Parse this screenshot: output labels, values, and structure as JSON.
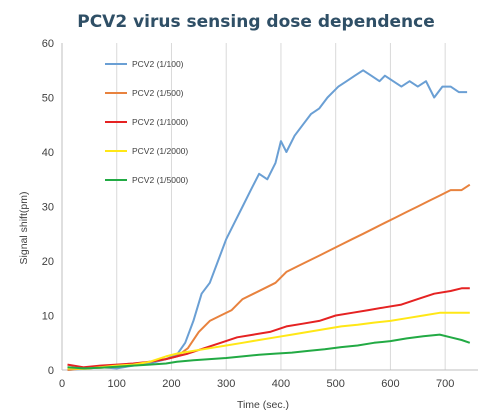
{
  "chart_data": {
    "type": "line",
    "title": "PCV2 virus sensing dose dependence",
    "xlabel": "Time (sec.)",
    "ylabel": "Signal shift(pm)",
    "xlim": [
      0,
      760
    ],
    "ylim": [
      0,
      60
    ],
    "x_ticks": [
      "0",
      "100",
      "200",
      "300",
      "400",
      "500",
      "600",
      "700"
    ],
    "y_ticks": [
      "0",
      "10",
      "20",
      "30",
      "40",
      "50",
      "60"
    ],
    "grid": "vertical",
    "legend_position": "top-left",
    "series": [
      {
        "name": "PCV2 (1/100)",
        "color": "#6a9fd4",
        "points": [
          [
            10,
            0
          ],
          [
            40,
            0.2
          ],
          [
            70,
            0.5
          ],
          [
            100,
            0.3
          ],
          [
            130,
            0.8
          ],
          [
            160,
            1.2
          ],
          [
            190,
            2
          ],
          [
            210,
            2.8
          ],
          [
            225,
            5
          ],
          [
            240,
            9
          ],
          [
            255,
            14
          ],
          [
            270,
            16
          ],
          [
            285,
            20
          ],
          [
            300,
            24
          ],
          [
            315,
            27
          ],
          [
            330,
            30
          ],
          [
            345,
            33
          ],
          [
            360,
            36
          ],
          [
            375,
            35
          ],
          [
            390,
            38
          ],
          [
            400,
            42
          ],
          [
            410,
            40
          ],
          [
            425,
            43
          ],
          [
            440,
            45
          ],
          [
            455,
            47
          ],
          [
            470,
            48
          ],
          [
            485,
            50
          ],
          [
            495,
            51
          ],
          [
            505,
            52
          ],
          [
            520,
            53
          ],
          [
            535,
            54
          ],
          [
            550,
            55
          ],
          [
            565,
            54
          ],
          [
            580,
            53
          ],
          [
            590,
            54
          ],
          [
            605,
            53
          ],
          [
            620,
            52
          ],
          [
            635,
            53
          ],
          [
            650,
            52
          ],
          [
            665,
            53
          ],
          [
            680,
            50
          ],
          [
            695,
            52
          ],
          [
            710,
            52
          ],
          [
            725,
            51
          ],
          [
            740,
            51
          ]
        ]
      },
      {
        "name": "PCV2 (1/500)",
        "color": "#e8823e",
        "points": [
          [
            10,
            0
          ],
          [
            40,
            0.3
          ],
          [
            70,
            0.4
          ],
          [
            100,
            0.6
          ],
          [
            130,
            1
          ],
          [
            160,
            1.5
          ],
          [
            190,
            2
          ],
          [
            210,
            2.5
          ],
          [
            230,
            4
          ],
          [
            250,
            7
          ],
          [
            270,
            9
          ],
          [
            290,
            10
          ],
          [
            310,
            11
          ],
          [
            330,
            13
          ],
          [
            350,
            14
          ],
          [
            370,
            15
          ],
          [
            390,
            16
          ],
          [
            410,
            18
          ],
          [
            430,
            19
          ],
          [
            450,
            20
          ],
          [
            470,
            21
          ],
          [
            490,
            22
          ],
          [
            510,
            23
          ],
          [
            530,
            24
          ],
          [
            550,
            25
          ],
          [
            570,
            26
          ],
          [
            590,
            27
          ],
          [
            610,
            28
          ],
          [
            630,
            29
          ],
          [
            650,
            30
          ],
          [
            670,
            31
          ],
          [
            690,
            32
          ],
          [
            710,
            33
          ],
          [
            730,
            33
          ],
          [
            745,
            34
          ]
        ]
      },
      {
        "name": "PCV2 (1/1000)",
        "color": "#e52222",
        "points": [
          [
            10,
            1
          ],
          [
            40,
            0.5
          ],
          [
            70,
            0.8
          ],
          [
            100,
            1
          ],
          [
            130,
            1.2
          ],
          [
            160,
            1.5
          ],
          [
            190,
            2
          ],
          [
            210,
            2.5
          ],
          [
            230,
            3
          ],
          [
            260,
            4
          ],
          [
            290,
            5
          ],
          [
            320,
            6
          ],
          [
            350,
            6.5
          ],
          [
            380,
            7
          ],
          [
            410,
            8
          ],
          [
            440,
            8.5
          ],
          [
            470,
            9
          ],
          [
            500,
            10
          ],
          [
            530,
            10.5
          ],
          [
            560,
            11
          ],
          [
            590,
            11.5
          ],
          [
            620,
            12
          ],
          [
            650,
            13
          ],
          [
            680,
            14
          ],
          [
            710,
            14.5
          ],
          [
            730,
            15
          ],
          [
            745,
            15
          ]
        ]
      },
      {
        "name": "PCV2 (1/2000)",
        "color": "#ffe716",
        "points": [
          [
            10,
            0.3
          ],
          [
            40,
            0.2
          ],
          [
            70,
            0.5
          ],
          [
            100,
            0.8
          ],
          [
            130,
            1
          ],
          [
            160,
            1.5
          ],
          [
            190,
            2.5
          ],
          [
            210,
            3
          ],
          [
            240,
            3.5
          ],
          [
            270,
            4
          ],
          [
            300,
            4.5
          ],
          [
            330,
            5
          ],
          [
            360,
            5.5
          ],
          [
            390,
            6
          ],
          [
            420,
            6.5
          ],
          [
            450,
            7
          ],
          [
            480,
            7.5
          ],
          [
            510,
            8
          ],
          [
            540,
            8.3
          ],
          [
            570,
            8.7
          ],
          [
            600,
            9
          ],
          [
            630,
            9.5
          ],
          [
            660,
            10
          ],
          [
            690,
            10.5
          ],
          [
            720,
            10.5
          ],
          [
            745,
            10.5
          ]
        ]
      },
      {
        "name": "PCV2 (1/5000)",
        "color": "#22aa44",
        "points": [
          [
            10,
            0.5
          ],
          [
            40,
            0.3
          ],
          [
            70,
            0.4
          ],
          [
            100,
            0.6
          ],
          [
            130,
            0.8
          ],
          [
            160,
            1
          ],
          [
            190,
            1.2
          ],
          [
            210,
            1.5
          ],
          [
            240,
            1.8
          ],
          [
            270,
            2
          ],
          [
            300,
            2.2
          ],
          [
            330,
            2.5
          ],
          [
            360,
            2.8
          ],
          [
            390,
            3
          ],
          [
            420,
            3.2
          ],
          [
            450,
            3.5
          ],
          [
            480,
            3.8
          ],
          [
            510,
            4.2
          ],
          [
            540,
            4.5
          ],
          [
            570,
            5
          ],
          [
            600,
            5.3
          ],
          [
            630,
            5.8
          ],
          [
            660,
            6.2
          ],
          [
            690,
            6.5
          ],
          [
            710,
            6
          ],
          [
            730,
            5.5
          ],
          [
            745,
            5
          ]
        ]
      }
    ]
  }
}
